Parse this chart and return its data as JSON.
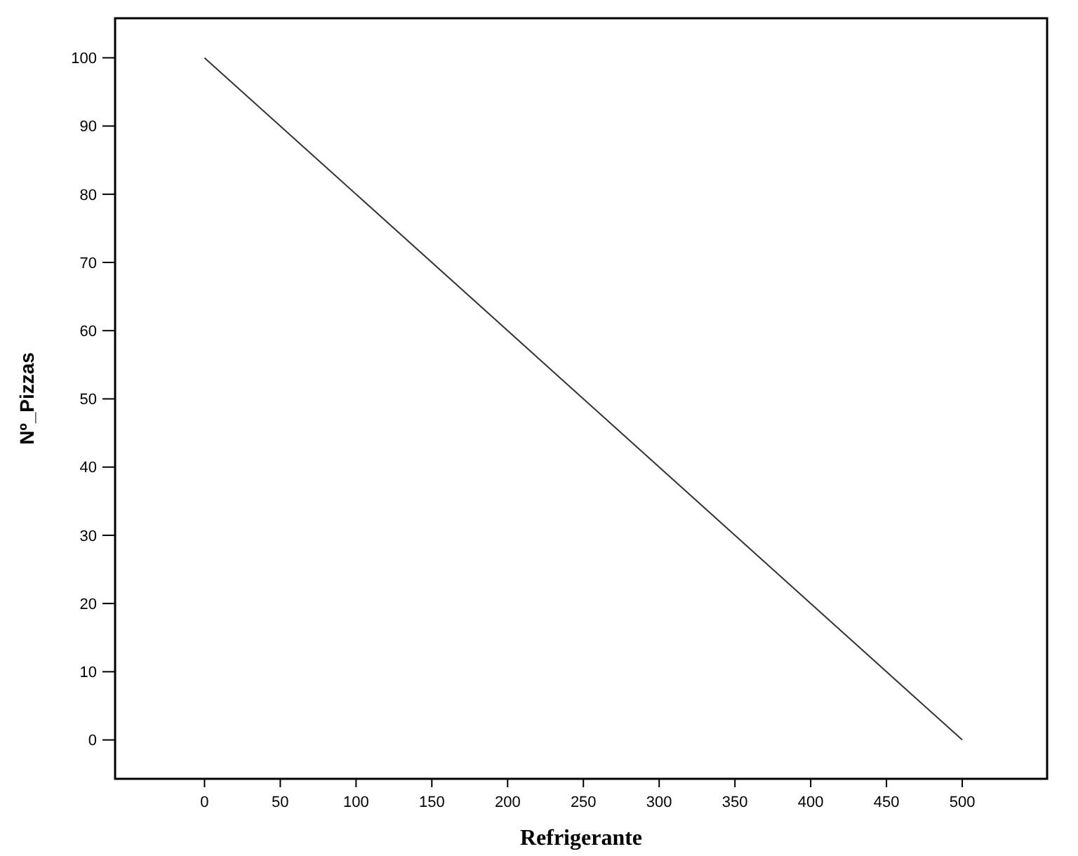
{
  "chart_data": {
    "type": "line",
    "xlabel": "Refrigerante",
    "ylabel": "Nº_Pizzas",
    "x": [
      0,
      500
    ],
    "series": [
      {
        "color": "#333333",
        "values": [
          100,
          0
        ]
      }
    ],
    "xlim": [
      -59,
      556
    ],
    "ylim": [
      -5.7,
      105.8
    ],
    "xticks": [
      0,
      50,
      100,
      150,
      200,
      250,
      300,
      350,
      400,
      450,
      500
    ],
    "yticks": [
      0,
      10,
      20,
      30,
      40,
      50,
      60,
      70,
      80,
      90,
      100
    ],
    "grid": false,
    "marker": "none",
    "line_style": "solid"
  }
}
